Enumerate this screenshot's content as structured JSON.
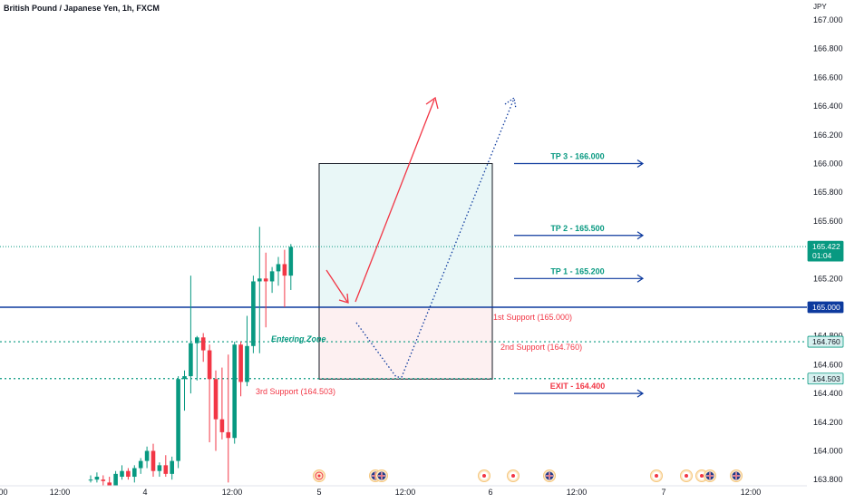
{
  "header": {
    "title": "British Pound / Japanese Yen, 1h, FXCM",
    "currency": "JPY"
  },
  "colors": {
    "up": "#089981",
    "down": "#f23645",
    "blue": "#0d3a9e",
    "teal": "#089981",
    "zoneTop": "#e9f7f7",
    "zoneBottom": "#fdf0f1"
  },
  "chart_data": {
    "type": "candlestick",
    "title": "British Pound / Japanese Yen, 1h, FXCM",
    "ylim": [
      163.8,
      167.05
    ],
    "y_ticks": [
      "167.000",
      "166.800",
      "166.600",
      "166.400",
      "166.200",
      "166.000",
      "165.800",
      "165.600",
      "165.400",
      "165.200",
      "165.000",
      "164.800",
      "164.600",
      "164.400",
      "164.200",
      "164.000",
      "163.800"
    ],
    "x_ticks": [
      "12:00",
      "4",
      "12:00",
      "5",
      "12:00",
      "6",
      "12:00",
      "7",
      "12:00"
    ],
    "candles": [
      {
        "o": 163.8,
        "h": 163.83,
        "l": 163.78,
        "c": 163.8
      },
      {
        "o": 163.8,
        "h": 163.85,
        "l": 163.78,
        "c": 163.82
      },
      {
        "o": 163.8,
        "h": 163.83,
        "l": 163.74,
        "c": 163.79
      },
      {
        "o": 163.78,
        "h": 163.82,
        "l": 163.7,
        "c": 163.72
      },
      {
        "o": 163.72,
        "h": 163.86,
        "l": 163.7,
        "c": 163.84
      },
      {
        "o": 163.82,
        "h": 163.9,
        "l": 163.8,
        "c": 163.86
      },
      {
        "o": 163.86,
        "h": 163.88,
        "l": 163.8,
        "c": 163.82
      },
      {
        "o": 163.82,
        "h": 163.9,
        "l": 163.78,
        "c": 163.88
      },
      {
        "o": 163.88,
        "h": 163.95,
        "l": 163.84,
        "c": 163.93
      },
      {
        "o": 163.93,
        "h": 164.03,
        "l": 163.88,
        "c": 164.0
      },
      {
        "o": 164.0,
        "h": 164.05,
        "l": 163.82,
        "c": 163.86
      },
      {
        "o": 163.86,
        "h": 163.92,
        "l": 163.82,
        "c": 163.9
      },
      {
        "o": 163.9,
        "h": 163.97,
        "l": 163.82,
        "c": 163.84
      },
      {
        "o": 163.84,
        "h": 163.96,
        "l": 163.8,
        "c": 163.93
      },
      {
        "o": 163.93,
        "h": 164.52,
        "l": 163.88,
        "c": 164.5
      },
      {
        "o": 164.5,
        "h": 164.56,
        "l": 164.28,
        "c": 164.52
      },
      {
        "o": 164.52,
        "h": 165.22,
        "l": 164.4,
        "c": 164.75
      },
      {
        "o": 164.75,
        "h": 164.8,
        "l": 164.49,
        "c": 164.79
      },
      {
        "o": 164.79,
        "h": 164.82,
        "l": 164.62,
        "c": 164.7
      },
      {
        "o": 164.7,
        "h": 164.74,
        "l": 164.06,
        "c": 164.5
      },
      {
        "o": 164.5,
        "h": 164.56,
        "l": 164.0,
        "c": 164.22
      },
      {
        "o": 164.22,
        "h": 164.58,
        "l": 164.08,
        "c": 164.13
      },
      {
        "o": 164.13,
        "h": 164.67,
        "l": 163.78,
        "c": 164.09
      },
      {
        "o": 164.09,
        "h": 164.76,
        "l": 164.05,
        "c": 164.74
      },
      {
        "o": 164.74,
        "h": 164.76,
        "l": 164.38,
        "c": 164.48
      },
      {
        "o": 164.48,
        "h": 164.94,
        "l": 164.45,
        "c": 164.73
      },
      {
        "o": 164.73,
        "h": 165.22,
        "l": 164.68,
        "c": 165.18
      },
      {
        "o": 165.18,
        "h": 165.56,
        "l": 164.68,
        "c": 165.2
      },
      {
        "o": 165.2,
        "h": 165.38,
        "l": 164.86,
        "c": 165.18
      },
      {
        "o": 165.18,
        "h": 165.28,
        "l": 165.1,
        "c": 165.25
      },
      {
        "o": 165.25,
        "h": 165.35,
        "l": 165.15,
        "c": 165.3
      },
      {
        "o": 165.3,
        "h": 165.4,
        "l": 165.0,
        "c": 165.22
      },
      {
        "o": 165.22,
        "h": 165.44,
        "l": 165.12,
        "c": 165.42
      }
    ],
    "last_price": "165.422",
    "countdown": "01:04",
    "levels": {
      "support1": 165.0,
      "support2": 164.76,
      "support3": 164.503,
      "tp1": 165.2,
      "tp2": 165.5,
      "tp3": 166.0,
      "exit": 164.4,
      "zone_top": 166.0,
      "zone_mid": 165.0,
      "zone_bottom": 164.5
    },
    "axis_badges": [
      {
        "text": "165.422",
        "value": 165.422,
        "style": "green",
        "sub": "01:04"
      },
      {
        "text": "165.000",
        "value": 165.0,
        "style": "blue"
      },
      {
        "text": "164.760",
        "value": 164.76,
        "style": "teal"
      },
      {
        "text": "164.503",
        "value": 164.503,
        "style": "teal"
      }
    ]
  },
  "annotations": {
    "tp3": "TP 3 - 166.000",
    "tp2": "TP 2 - 165.500",
    "tp1": "TP 1 - 165.200",
    "exit": "EXIT - 164.400",
    "support1": "1st Support (165.000)",
    "support2": "2nd Support (164.760)",
    "support3": "3rd Support (164.503)",
    "entering_zone": "Entering Zone"
  },
  "events": [
    {
      "type": "red-circle"
    },
    {
      "type": "flag"
    },
    {
      "type": "flag"
    },
    {
      "type": "dot"
    },
    {
      "type": "dot"
    },
    {
      "type": "flag"
    },
    {
      "type": "dot"
    },
    {
      "type": "dot"
    },
    {
      "type": "dot"
    },
    {
      "type": "flag"
    },
    {
      "type": "flag"
    }
  ]
}
